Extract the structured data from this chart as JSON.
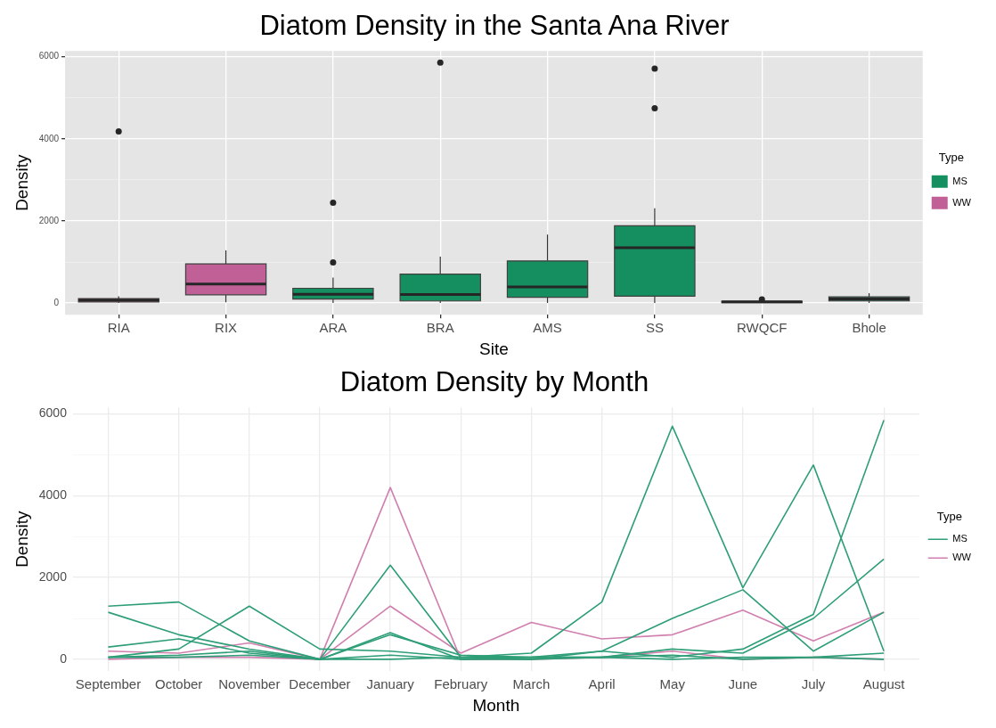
{
  "chart_data": [
    {
      "type": "box",
      "title": "Diatom Density in the Santa Ana River",
      "xlabel": "Site",
      "ylabel": "Density",
      "legend_title": "Type",
      "legend": "right",
      "grid": true,
      "categories": [
        "RIA",
        "RIX",
        "ARA",
        "BRA",
        "AMS",
        "SS",
        "RWQCF",
        "Bhole"
      ],
      "ylim": [
        -285,
        6140
      ],
      "yticks": [
        0,
        {
          "value": 1000,
          "label": null
        },
        2000,
        {
          "value": 3000,
          "label": null
        },
        4000,
        {
          "value": 5000,
          "label": null
        },
        6000
      ],
      "series": [
        {
          "name": "MS",
          "color": "#168f60",
          "boxes": [
            null,
            null,
            {
              "low": 0,
              "q1": 95,
              "median": 215,
              "q3": 360,
              "high": 620,
              "outliers": [
                990,
                2445
              ]
            },
            {
              "low": 0,
              "q1": 50,
              "median": 210,
              "q3": 705,
              "high": 1130,
              "outliers": [
                5855
              ]
            },
            {
              "low": 0,
              "q1": 140,
              "median": 390,
              "q3": 1025,
              "high": 1670
            },
            {
              "low": 0,
              "q1": 165,
              "median": 1350,
              "q3": 1880,
              "high": 2310,
              "outliers": [
                4745,
                5710
              ]
            },
            {
              "low": 0,
              "q1": 10,
              "median": 30,
              "q3": 45,
              "high": 45,
              "outliers": [
                90
              ]
            },
            {
              "low": 0,
              "q1": 50,
              "median": 100,
              "q3": 150,
              "high": 240
            }
          ]
        },
        {
          "name": "WW",
          "color": "#c06096",
          "boxes": [
            {
              "low": 0,
              "q1": 25,
              "median": 70,
              "q3": 110,
              "high": 165,
              "outliers": [
                4180
              ]
            },
            {
              "low": 20,
              "q1": 200,
              "median": 465,
              "q3": 955,
              "high": 1280
            },
            null,
            null,
            null,
            null,
            null,
            null
          ]
        }
      ]
    },
    {
      "type": "line",
      "title": "Diatom Density by Month",
      "xlabel": "Month",
      "ylabel": "Density",
      "legend_title": "Type",
      "legend": "right",
      "grid": true,
      "categories": [
        "September",
        "October",
        "November",
        "December",
        "January",
        "February",
        "March",
        "April",
        "May",
        "June",
        "July",
        "August"
      ],
      "ylim": [
        -290,
        6160
      ],
      "yticks": [
        0,
        {
          "value": 1000,
          "label": null
        },
        2000,
        {
          "value": 3000,
          "label": null
        },
        4000,
        {
          "value": 5000,
          "label": null
        },
        6000
      ],
      "series": [
        {
          "name": "MS",
          "color": "#2e9e77",
          "values": [
            1300,
            1400,
            450,
            0,
            2300,
            50,
            150,
            1400,
            5700,
            1750,
            4750,
            200
          ]
        },
        {
          "color": "#2e9e77",
          "values": [
            1150,
            600,
            250,
            0,
            650,
            0,
            50,
            200,
            50,
            250,
            1100,
            5850
          ]
        },
        {
          "color": "#2e9e77",
          "values": [
            300,
            500,
            150,
            0,
            600,
            100,
            50,
            50,
            250,
            150,
            1000,
            2450
          ]
        },
        {
          "color": "#2e9e77",
          "values": [
            50,
            250,
            1300,
            250,
            200,
            50,
            0,
            200,
            1000,
            1700,
            200,
            1150
          ]
        },
        {
          "color": "#2e9e77",
          "values": [
            50,
            50,
            100,
            0,
            100,
            0,
            0,
            50,
            0,
            50,
            50,
            0
          ]
        },
        {
          "color": "#2e9e77",
          "values": [
            50,
            100,
            200,
            0,
            0,
            50,
            50,
            50,
            100,
            0,
            50,
            150
          ]
        },
        {
          "name": "WW",
          "color": "#d07faf",
          "values": [
            200,
            150,
            400,
            0,
            1300,
            150,
            900,
            500,
            600,
            1200,
            450,
            1150
          ]
        },
        {
          "color": "#d07faf",
          "values": [
            0,
            50,
            50,
            0,
            4200,
            0,
            0,
            50,
            200,
            0,
            50,
            0
          ]
        }
      ]
    }
  ]
}
